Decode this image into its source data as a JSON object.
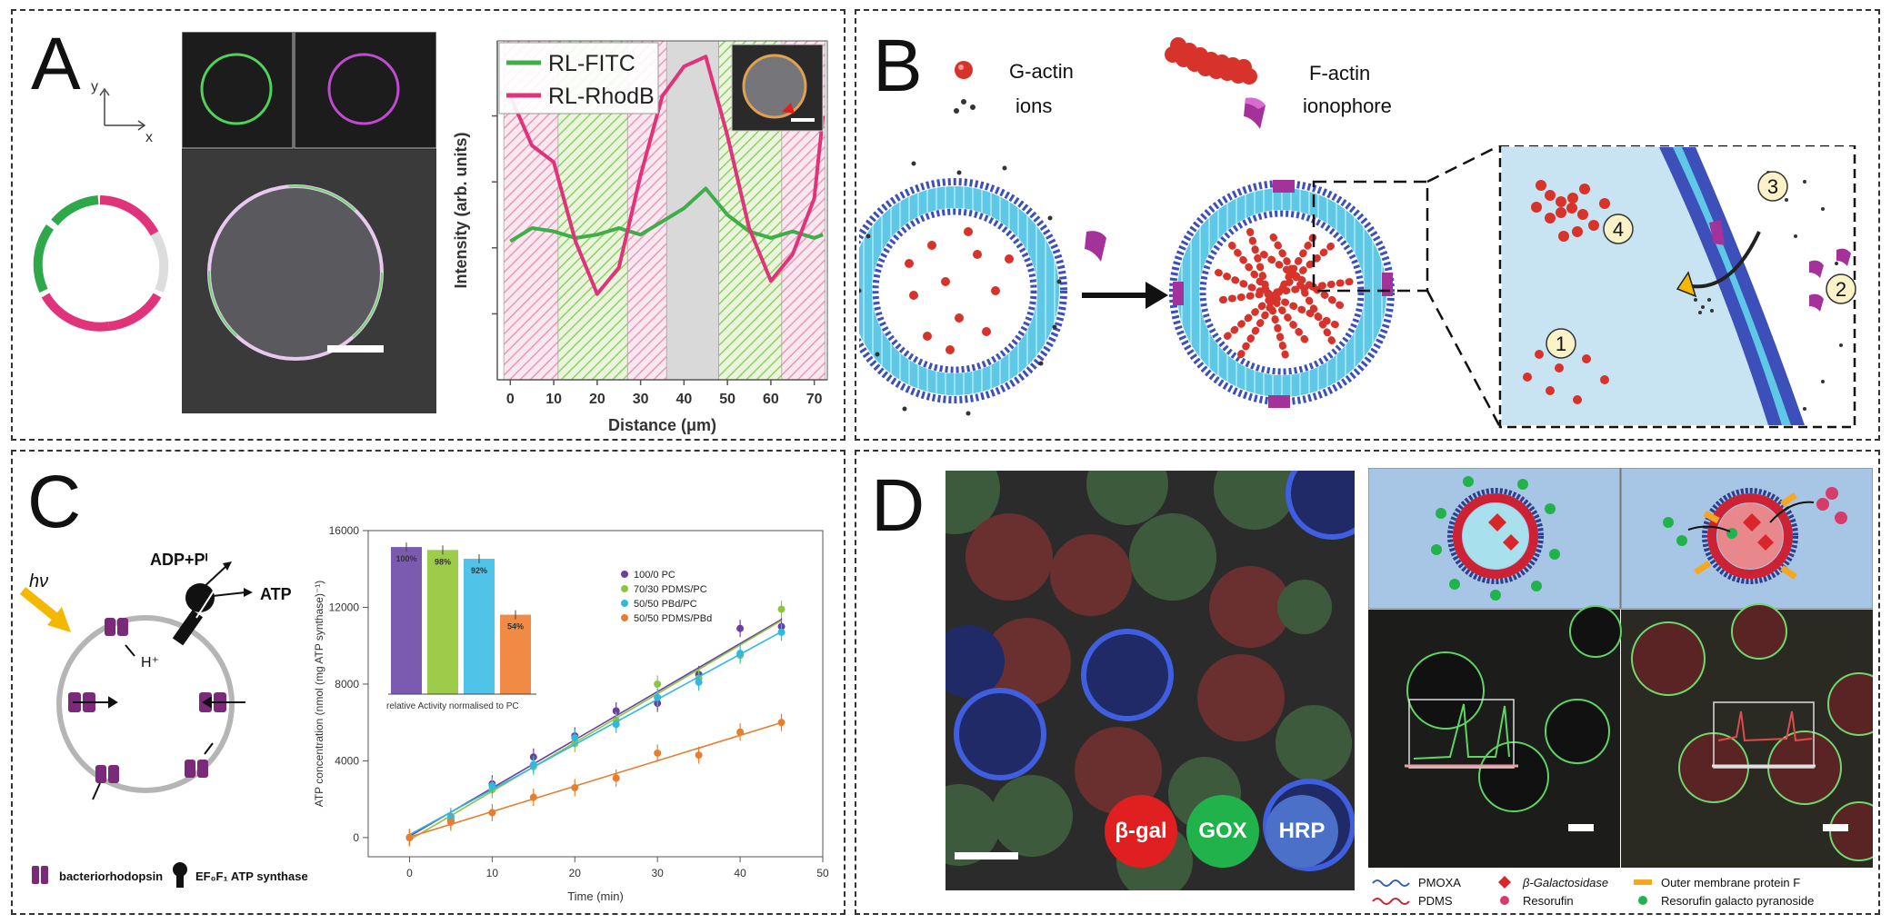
{
  "panels": {
    "a": {
      "letter": "A"
    },
    "b": {
      "letter": "B"
    },
    "c": {
      "letter": "C"
    },
    "d": {
      "letter": "D"
    }
  },
  "panel_a": {
    "axis_y": "y",
    "axis_x": "x",
    "legend": [
      "RL-FITC",
      "RL-RhodB"
    ]
  },
  "panel_b": {
    "legend": {
      "g_actin": "G-actin",
      "f_actin": "F-actin",
      "ions": "ions",
      "ionophore": "ionophore"
    },
    "steps": [
      "1",
      "2",
      "3",
      "4"
    ]
  },
  "panel_c": {
    "schematic": {
      "hv": "hν",
      "adp": "ADP+Pᴵ",
      "atp": "ATP",
      "h": "H⁺",
      "bacteriorhodopsin": "bacteriorhodopsin",
      "atp_synthase": "EF₀F₁ ATP synthase"
    },
    "inset_caption": "relative Activity normalised to PC"
  },
  "panel_d": {
    "badges": [
      "β-gal",
      "GOX",
      "HRP"
    ],
    "legend": {
      "pmoxa": "PMOXA",
      "pdms": "PDMS",
      "bgal": "β-Galactosidase",
      "resorufin": "Resorufin",
      "ompf": "Outer membrane protein F",
      "rgp": "Resorufin galacto pyranoside"
    }
  },
  "chart_data": [
    {
      "type": "line",
      "panel": "A",
      "title": "",
      "xlabel": "Distance (μm)",
      "ylabel": "Intensity (arb. units)",
      "xlim": [
        -3,
        73
      ],
      "ylim": [
        0,
        1
      ],
      "xticks": [
        "0",
        "10",
        "20",
        "30",
        "40",
        "50",
        "60",
        "70"
      ],
      "x": [
        0,
        5,
        10,
        15,
        20,
        25,
        30,
        35,
        40,
        45,
        50,
        55,
        60,
        65,
        70,
        72
      ],
      "series": [
        {
          "name": "RL-FITC",
          "color": "#3fae49",
          "values": [
            0.42,
            0.46,
            0.45,
            0.43,
            0.44,
            0.46,
            0.44,
            0.48,
            0.52,
            0.58,
            0.5,
            0.45,
            0.43,
            0.45,
            0.43,
            0.44
          ]
        },
        {
          "name": "RL-RhodB",
          "color": "#e0337a",
          "values": [
            0.86,
            0.71,
            0.66,
            0.42,
            0.26,
            0.34,
            0.62,
            0.86,
            0.95,
            0.98,
            0.74,
            0.46,
            0.3,
            0.38,
            0.55,
            0.8
          ]
        }
      ],
      "bands": [
        {
          "x0": -1.5,
          "x1": 11,
          "kind": "magenta"
        },
        {
          "x0": 11,
          "x1": 27,
          "kind": "green"
        },
        {
          "x0": 27,
          "x1": 36,
          "kind": "magenta"
        },
        {
          "x0": 36,
          "x1": 48,
          "kind": "grey"
        },
        {
          "x0": 48,
          "x1": 62.5,
          "kind": "green"
        },
        {
          "x0": 62.5,
          "x1": 72.5,
          "kind": "magenta"
        }
      ]
    },
    {
      "type": "scatter",
      "panel": "C",
      "xlabel": "Time (min)",
      "ylabel": "ATP concentration (nmol (mg ATP synthase)⁻¹)",
      "xlim": [
        -5,
        50
      ],
      "ylim": [
        -1000,
        16000
      ],
      "xticks": [
        "0",
        "10",
        "20",
        "30",
        "40",
        "50"
      ],
      "yticks": [
        "0",
        "4000",
        "8000",
        "12000",
        "16000"
      ],
      "series": [
        {
          "name": "100/0 PC",
          "color": "#6a3fa0",
          "x": [
            0,
            5,
            10,
            15,
            20,
            25,
            30,
            35,
            40,
            45
          ],
          "values": [
            0,
            900,
            2800,
            4200,
            5300,
            6600,
            7000,
            8500,
            10900,
            11000
          ]
        },
        {
          "name": "70/30 PDMS/PC",
          "color": "#8cc63f",
          "x": [
            0,
            5,
            10,
            15,
            20,
            25,
            30,
            35,
            40,
            45
          ],
          "values": [
            0,
            1000,
            2500,
            3700,
            4900,
            6100,
            8000,
            8300,
            9500,
            11900
          ]
        },
        {
          "name": "50/50 PBd/PC",
          "color": "#2fb8e0",
          "x": [
            0,
            5,
            10,
            15,
            20,
            25,
            30,
            35,
            40,
            45
          ],
          "values": [
            0,
            1100,
            2700,
            3800,
            5200,
            5900,
            7300,
            8100,
            9600,
            10700
          ]
        },
        {
          "name": "50/50 PDMS/PBd",
          "color": "#e87d2e",
          "x": [
            0,
            5,
            10,
            15,
            20,
            25,
            30,
            35,
            40,
            45
          ],
          "values": [
            0,
            800,
            1300,
            2100,
            2600,
            3100,
            4400,
            4300,
            5500,
            6000
          ]
        }
      ]
    },
    {
      "type": "bar",
      "panel": "C-inset",
      "title": "relative Activity normalised to PC",
      "categories": [
        "100/0 PC",
        "70/30 PDMS/PC",
        "50/50 PBd/PC",
        "50/50 PDMS/PBd"
      ],
      "values": [
        100,
        98,
        92,
        54
      ],
      "labels": [
        "100%",
        "98%",
        "92%",
        "54%"
      ],
      "colors": [
        "#7b5bb0",
        "#9ccc4a",
        "#4fc3e8",
        "#f08a44"
      ],
      "ylim": [
        0,
        105
      ]
    }
  ]
}
